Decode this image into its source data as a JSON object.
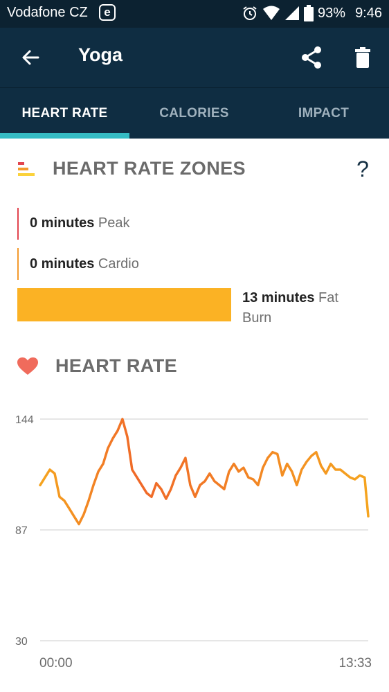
{
  "status_bar": {
    "carrier": "Vodafone CZ",
    "e_badge": "e",
    "battery": "93%",
    "time": "9:46"
  },
  "app_bar": {
    "title": "Yoga"
  },
  "tabs": [
    {
      "label": "HEART RATE",
      "active": true
    },
    {
      "label": "CALORIES",
      "active": false
    },
    {
      "label": "IMPACT",
      "active": false
    }
  ],
  "zones_section": {
    "title": "HEART RATE ZONES",
    "help": "?",
    "zones": [
      {
        "minutes": "0 minutes",
        "name": "Peak",
        "color": "#e2454f"
      },
      {
        "minutes": "0 minutes",
        "name": "Cardio",
        "color": "#f39a2d"
      },
      {
        "minutes": "13 minutes",
        "name": "Fat",
        "name2": "Burn",
        "color": "#fbb224"
      }
    ]
  },
  "heart_rate_section": {
    "title": "HEART RATE"
  },
  "colors": {
    "status_bg": "#0c2231",
    "header_bg": "#0f2d42",
    "tab_indicator": "#35bcc4",
    "line_orange_start": "#f5a41f",
    "line_orange_peak": "#f06828",
    "heart": "#f06b5c"
  },
  "chart_data": {
    "type": "line",
    "x_start_label": "00:00",
    "x_end_label": "13:33",
    "y_ticks": [
      144,
      87,
      30
    ],
    "ylim": [
      30,
      144
    ],
    "xlim": [
      0,
      13.55
    ],
    "x": [
      0,
      0.2,
      0.4,
      0.6,
      0.8,
      1.0,
      1.2,
      1.4,
      1.6,
      1.8,
      2.0,
      2.2,
      2.4,
      2.6,
      2.8,
      3.0,
      3.2,
      3.4,
      3.6,
      3.8,
      4.0,
      4.2,
      4.4,
      4.6,
      4.8,
      5.0,
      5.2,
      5.4,
      5.6,
      5.8,
      6.0,
      6.2,
      6.4,
      6.6,
      6.8,
      7.0,
      7.2,
      7.4,
      7.6,
      7.8,
      8.0,
      8.2,
      8.4,
      8.6,
      8.8,
      9.0,
      9.2,
      9.4,
      9.6,
      9.8,
      10.0,
      10.2,
      10.4,
      10.6,
      10.8,
      11.0,
      11.2,
      11.4,
      11.6,
      11.8,
      12.0,
      12.2,
      12.4,
      12.6,
      12.8,
      13.0,
      13.2,
      13.4,
      13.55
    ],
    "values": [
      110,
      114,
      118,
      116,
      104,
      102,
      98,
      94,
      90,
      95,
      102,
      110,
      117,
      121,
      129,
      134,
      138,
      144,
      135,
      118,
      114,
      110,
      106,
      104,
      111,
      108,
      103,
      108,
      115,
      119,
      124,
      110,
      104,
      110,
      112,
      116,
      112,
      110,
      108,
      117,
      121,
      117,
      119,
      114,
      113,
      110,
      119,
      124,
      127,
      126,
      115,
      121,
      117,
      110,
      118,
      122,
      125,
      127,
      120,
      116,
      121,
      118,
      118,
      116,
      114,
      113,
      115,
      114,
      94
    ]
  }
}
